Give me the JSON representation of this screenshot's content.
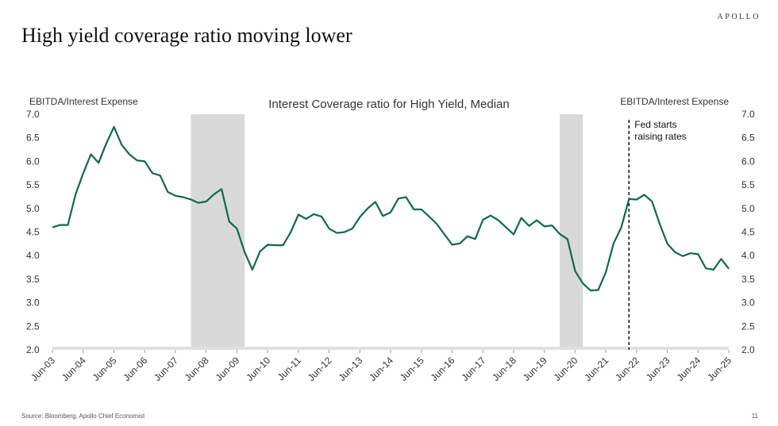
{
  "header": {
    "brand": "APOLLO",
    "title": "High yield coverage ratio moving lower"
  },
  "footer": {
    "source": "Source: Bloomberg, Apollo Chief Economist",
    "page_number": "11"
  },
  "colors": {
    "line": "#0b6b4f",
    "recession": "#d9d9d9",
    "baseline": "#e0e0e0",
    "text": "#333333"
  },
  "chart_data": {
    "type": "line",
    "title": "Interest Coverage ratio for High Yield, Median",
    "ylabel_left": "EBITDA/Interest Expense",
    "ylabel_right": "EBITDA/Interest Expense",
    "ylim": [
      2.0,
      7.0
    ],
    "yticks": [
      "2.0",
      "2.5",
      "3.0",
      "3.5",
      "4.0",
      "4.5",
      "5.0",
      "5.5",
      "6.0",
      "6.5",
      "7.0"
    ],
    "xlim": [
      2003.4167,
      2025.4167
    ],
    "xticks": [
      {
        "x": 2003.4167,
        "label": "Jun-03"
      },
      {
        "x": 2004.4167,
        "label": "Jun-04"
      },
      {
        "x": 2005.4167,
        "label": "Jun-05"
      },
      {
        "x": 2006.4167,
        "label": "Jun-06"
      },
      {
        "x": 2007.4167,
        "label": "Jun-07"
      },
      {
        "x": 2008.4167,
        "label": "Jun-08"
      },
      {
        "x": 2009.4167,
        "label": "Jun-09"
      },
      {
        "x": 2010.4167,
        "label": "Jun-10"
      },
      {
        "x": 2011.4167,
        "label": "Jun-11"
      },
      {
        "x": 2012.4167,
        "label": "Jun-12"
      },
      {
        "x": 2013.4167,
        "label": "Jun-13"
      },
      {
        "x": 2014.4167,
        "label": "Jun-14"
      },
      {
        "x": 2015.4167,
        "label": "Jun-15"
      },
      {
        "x": 2016.4167,
        "label": "Jun-16"
      },
      {
        "x": 2017.4167,
        "label": "Jun-17"
      },
      {
        "x": 2018.4167,
        "label": "Jun-18"
      },
      {
        "x": 2019.4167,
        "label": "Jun-19"
      },
      {
        "x": 2020.4167,
        "label": "Jun-20"
      },
      {
        "x": 2021.4167,
        "label": "Jun-21"
      },
      {
        "x": 2022.4167,
        "label": "Jun-22"
      },
      {
        "x": 2023.4167,
        "label": "Jun-23"
      },
      {
        "x": 2024.4167,
        "label": "Jun-24"
      },
      {
        "x": 2025.4167,
        "label": "Jun-25"
      }
    ],
    "recessions": [
      {
        "start": 2007.92,
        "end": 2009.67
      },
      {
        "start": 2019.92,
        "end": 2020.67
      }
    ],
    "annotation": {
      "x": 2022.17,
      "lines": [
        "Fed starts",
        "raising rates"
      ]
    },
    "grid": false,
    "legend": "none",
    "series": [
      {
        "x": [
          2003.42,
          2003.67,
          2003.92,
          2004.17,
          2004.42,
          2004.67,
          2004.92,
          2005.17,
          2005.42,
          2005.67,
          2005.92,
          2006.17,
          2006.42,
          2006.67,
          2006.92,
          2007.17,
          2007.42,
          2007.67,
          2007.92,
          2008.17,
          2008.42,
          2008.67,
          2008.92,
          2009.17,
          2009.42,
          2009.67,
          2009.92,
          2010.17,
          2010.42,
          2010.67,
          2010.92,
          2011.17,
          2011.42,
          2011.67,
          2011.92,
          2012.17,
          2012.42,
          2012.67,
          2012.92,
          2013.17,
          2013.42,
          2013.67,
          2013.92,
          2014.17,
          2014.42,
          2014.67,
          2014.92,
          2015.17,
          2015.42,
          2015.67,
          2015.92,
          2016.17,
          2016.42,
          2016.67,
          2016.92,
          2017.17,
          2017.42,
          2017.67,
          2017.92,
          2018.17,
          2018.42,
          2018.67,
          2018.92,
          2019.17,
          2019.42,
          2019.67,
          2019.92,
          2020.17,
          2020.42,
          2020.67,
          2020.92,
          2021.17,
          2021.42,
          2021.67,
          2021.92,
          2022.17,
          2022.42,
          2022.67,
          2022.92,
          2023.17,
          2023.42,
          2023.67,
          2023.92,
          2024.17,
          2024.42,
          2024.67,
          2024.92,
          2025.17,
          2025.42
        ],
        "values": [
          4.6,
          4.65,
          4.65,
          5.3,
          5.75,
          6.15,
          5.97,
          6.38,
          6.73,
          6.35,
          6.15,
          6.02,
          6.0,
          5.75,
          5.7,
          5.35,
          5.27,
          5.24,
          5.19,
          5.12,
          5.15,
          5.3,
          5.41,
          4.72,
          4.57,
          4.07,
          3.7,
          4.09,
          4.23,
          4.22,
          4.22,
          4.5,
          4.87,
          4.78,
          4.88,
          4.83,
          4.57,
          4.48,
          4.5,
          4.57,
          4.82,
          5.0,
          5.14,
          4.84,
          4.92,
          5.21,
          5.24,
          4.98,
          4.98,
          4.83,
          4.67,
          4.45,
          4.23,
          4.26,
          4.41,
          4.35,
          4.76,
          4.85,
          4.75,
          4.6,
          4.45,
          4.8,
          4.63,
          4.75,
          4.62,
          4.64,
          4.46,
          4.35,
          3.67,
          3.41,
          3.26,
          3.27,
          3.65,
          4.26,
          4.6,
          5.2,
          5.19,
          5.29,
          5.15,
          4.67,
          4.25,
          4.07,
          3.99,
          4.05,
          4.03,
          3.73,
          3.7,
          3.93,
          3.72
        ]
      }
    ]
  }
}
